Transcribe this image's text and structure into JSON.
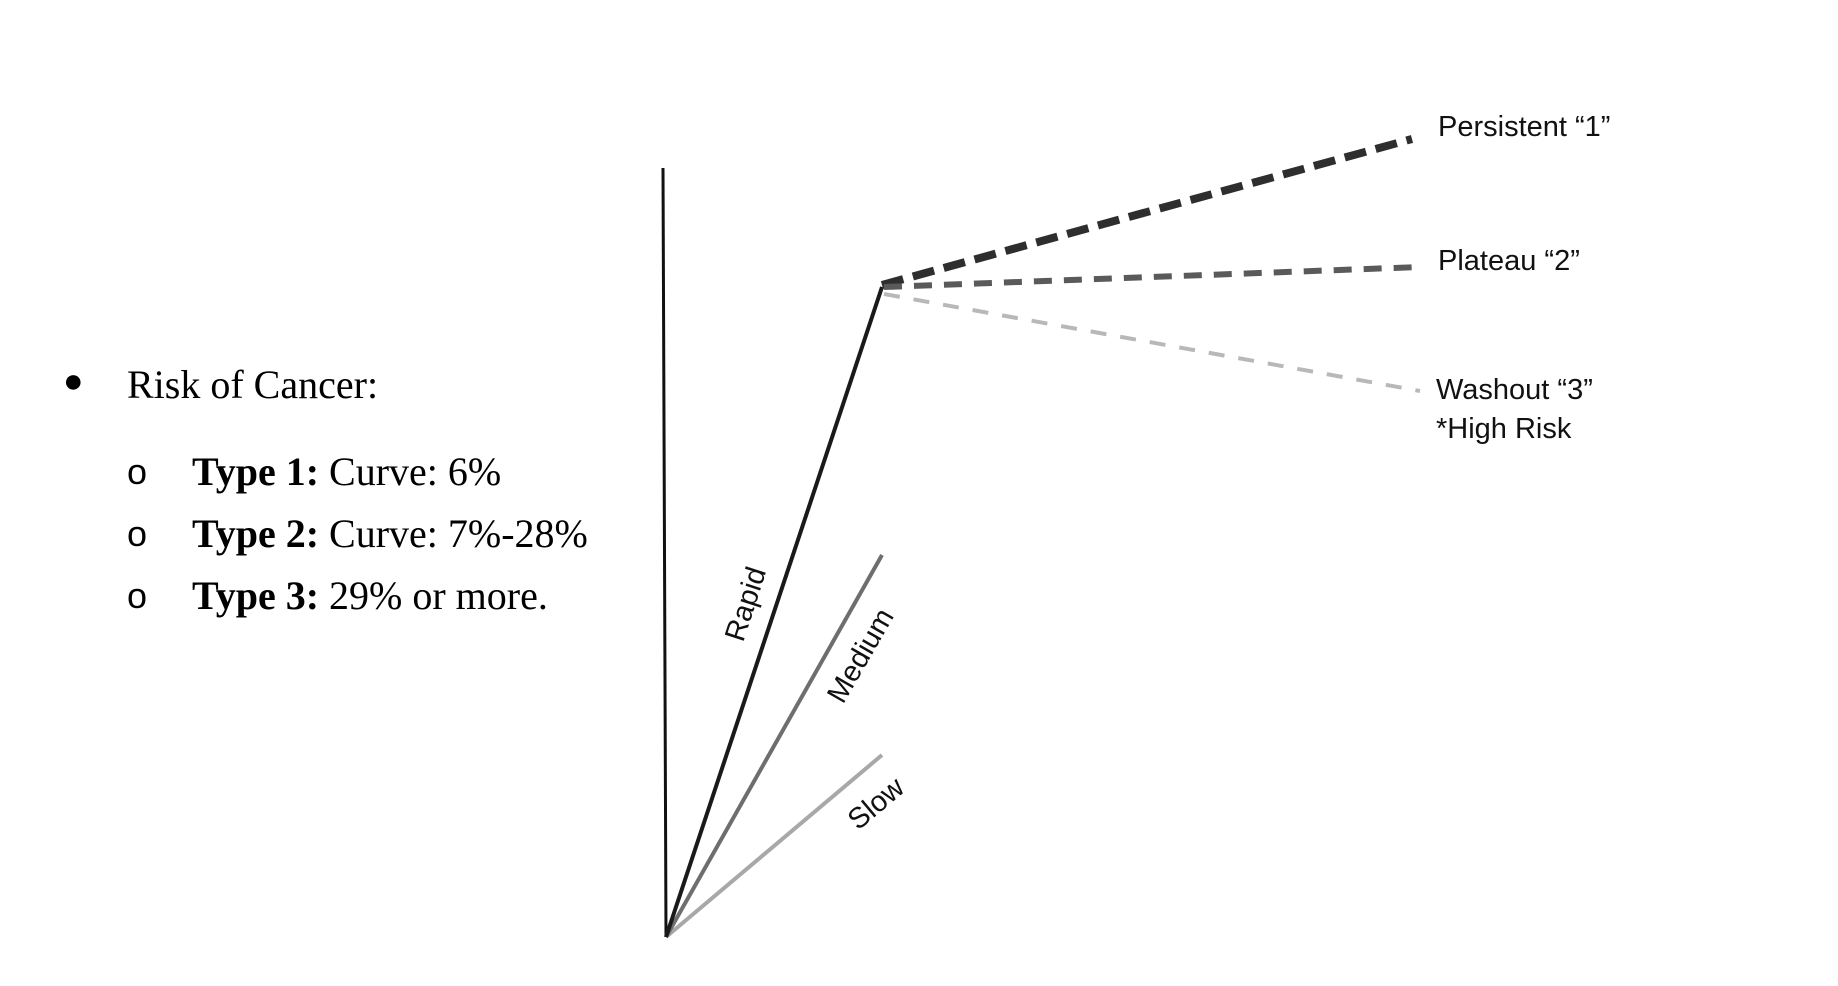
{
  "risk": {
    "heading": "Risk of Cancer:",
    "items": [
      {
        "label": "Type 1:",
        "text": " Curve: 6%"
      },
      {
        "label": "Type 2:",
        "text": " Curve: 7%-28%"
      },
      {
        "label": "Type 3:",
        "text": " 29% or more."
      }
    ],
    "sub_marker": "o"
  },
  "diagram": {
    "uptake_labels": {
      "rapid": "Rapid",
      "medium": "Medium",
      "slow": "Slow"
    },
    "curves": {
      "persistent": "Persistent “1”",
      "plateau": "Plateau “2”",
      "washout": "Washout “3”",
      "washout_note": "*High Risk"
    },
    "colors": {
      "rapid": "#1a1a1a",
      "medium": "#6e6e6e",
      "slow": "#a8a8a8",
      "persistent": "#2e2e2e",
      "plateau": "#5a5a5a",
      "washout": "#b8b8b8"
    }
  }
}
